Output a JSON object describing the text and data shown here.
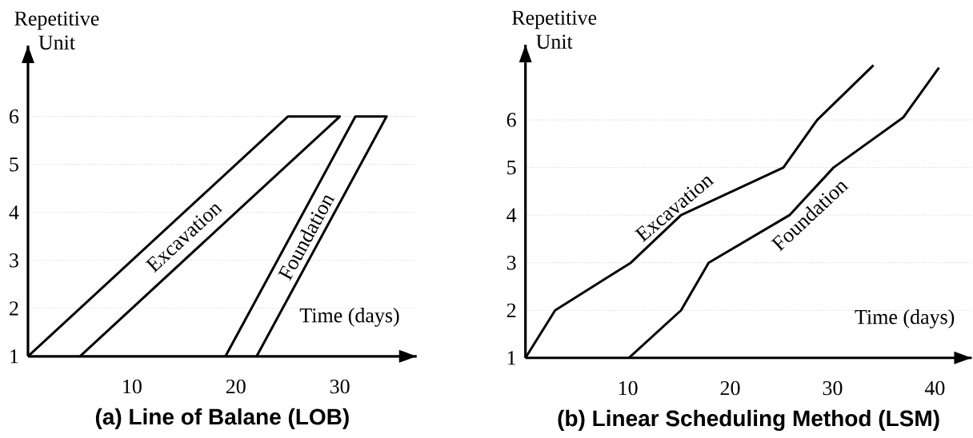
{
  "chart_data": [
    {
      "type": "line",
      "title": "(a) Line of Balane (LOB)",
      "xlabel": "Time (days)",
      "ylabel": "Repetitive Unit",
      "xlim": [
        0,
        37.4
      ],
      "ylim": [
        1,
        7.48
      ],
      "xticks": [
        10,
        20,
        30
      ],
      "yticks": [
        1,
        2,
        3,
        4,
        5,
        6
      ],
      "grid": "y",
      "series": [
        {
          "name": "Excavation",
          "color": "#000000",
          "x": [
            0,
            25,
            30,
            5
          ],
          "values": [
            1,
            6,
            6,
            1
          ]
        },
        {
          "name": "Foundation",
          "color": "#000000",
          "x": [
            19,
            31.5,
            34.5,
            22
          ],
          "values": [
            1,
            6,
            6,
            1
          ]
        }
      ]
    },
    {
      "type": "line",
      "title": "(b) Linear Scheduling Method (LSM)",
      "xlabel": "Time (days)",
      "ylabel": "Repetitive Unit",
      "xlim": [
        0,
        43.6
      ],
      "ylim": [
        1,
        7.58
      ],
      "xticks": [
        10,
        20,
        30,
        40
      ],
      "yticks": [
        1,
        2,
        3,
        4,
        5,
        6
      ],
      "grid": "y",
      "series": [
        {
          "name": "Excavation",
          "color": "#000000",
          "x": [
            0,
            2.9,
            10.3,
            15.2,
            25.2,
            28.5,
            34
          ],
          "values": [
            1,
            2,
            3,
            4,
            5,
            6,
            7.15
          ]
        },
        {
          "name": "Foundation",
          "color": "#000000",
          "x": [
            10.1,
            15.2,
            17.9,
            25.8,
            30.1,
            36.9,
            40.4
          ],
          "values": [
            1,
            2,
            3,
            4,
            5,
            6.05,
            7.1
          ]
        }
      ]
    }
  ]
}
